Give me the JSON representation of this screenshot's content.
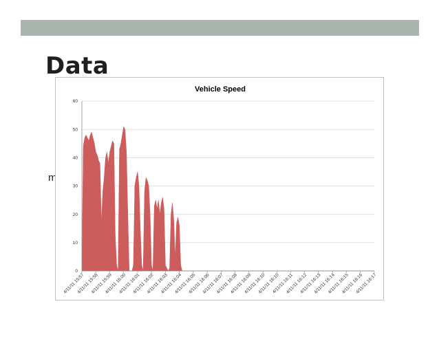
{
  "slide": {
    "title": "Data",
    "unit_label": "mph"
  },
  "colors": {
    "top_bar": "#a7b5ad",
    "area_fill": "#cd5c5c",
    "gridline": "#d9d9d9"
  },
  "chart_data": {
    "type": "area",
    "title": "Vehicle Speed",
    "xlabel": "",
    "ylabel": "mph",
    "ylim": [
      0,
      60
    ],
    "y_ticks": [
      0,
      10,
      20,
      30,
      40,
      50,
      60
    ],
    "grid": true,
    "legend": "none",
    "x_tick_labels": [
      "4/11/11 15:57",
      "4/11/11 15:58",
      "4/11/11 15:59",
      "4/11/11 16:00",
      "4/11/11 16:01",
      "4/11/11 16:02",
      "4/11/11 16:03",
      "4/11/11 16:04",
      "4/11/11 16:05",
      "4/11/11 16:06",
      "4/11/11 16:07",
      "4/11/11 16:08",
      "4/11/11 16:09",
      "4/11/11 16:10",
      "4/11/11 16:10",
      "4/11/11 16:11",
      "4/11/11 16:12",
      "4/11/11 16:13",
      "4/11/11 16:14",
      "4/11/11 16:15",
      "4/11/11 16:16",
      "4/11/11 16:17"
    ],
    "series": [
      {
        "x": [
          0,
          0.1,
          0.2,
          0.3,
          0.4,
          0.5,
          0.6,
          0.7,
          0.8,
          0.9,
          1.0,
          1.1,
          1.2,
          1.3,
          1.4,
          1.5,
          1.6,
          1.7,
          1.8,
          1.9,
          2.0,
          2.1,
          2.2,
          2.3,
          2.4,
          2.5,
          2.6,
          2.7,
          2.8,
          2.9,
          3.0,
          3.1,
          3.2,
          3.3,
          3.4,
          3.5,
          3.6,
          3.7,
          3.8,
          3.9,
          4.0,
          4.1,
          4.2,
          4.3,
          4.4,
          4.5,
          4.6,
          4.7,
          4.8,
          4.9,
          5.0,
          5.1,
          5.2,
          5.3,
          5.4,
          5.5,
          5.6,
          5.7,
          5.8,
          5.9,
          6.0,
          6.1,
          6.2,
          6.3,
          6.4,
          6.5,
          6.6,
          6.7,
          6.8,
          6.9,
          7.0,
          7.1,
          7.2,
          7.3,
          7.4,
          7.5,
          7.6,
          7.7,
          7.8,
          7.9,
          8.0,
          8.1,
          8.2,
          8.3,
          8.4,
          8.5,
          8.6,
          8.7,
          8.8,
          8.9,
          9.0,
          9.1,
          9.2,
          9.3,
          9.4,
          9.5,
          9.6,
          9.7,
          9.8,
          9.9,
          10.0,
          10.1,
          10.2,
          10.3,
          10.4,
          10.5,
          10.6,
          10.7,
          10.8,
          10.9,
          11.0,
          11.1,
          11.2,
          11.3,
          11.4,
          11.5,
          11.6,
          11.7,
          11.8,
          11.9,
          12.0,
          12.1,
          12.2,
          12.3,
          12.4,
          12.5,
          12.6,
          12.7,
          12.8,
          12.9,
          13.0,
          13.1,
          13.2,
          13.3,
          13.4,
          13.5,
          13.6,
          13.7,
          13.8,
          13.9,
          14.0,
          14.1,
          14.2,
          14.3,
          14.4,
          14.5,
          14.6,
          14.7,
          14.8,
          14.9,
          15.0,
          15.1,
          15.2,
          15.3,
          15.4,
          15.5,
          15.6,
          15.7,
          15.8,
          15.9,
          16.0,
          16.1,
          16.2,
          16.3,
          16.4,
          16.5,
          16.6,
          16.7,
          16.8,
          16.9,
          17.0,
          17.1,
          17.2,
          17.3,
          17.4,
          17.5,
          17.6,
          17.7,
          17.8,
          17.9,
          18.0,
          18.1,
          18.2,
          18.3,
          18.4,
          18.5,
          18.6,
          18.7,
          18.8,
          18.9,
          19.0,
          19.1,
          19.2,
          19.3,
          19.4,
          19.5,
          19.6,
          19.7,
          19.8,
          19.9,
          20.0,
          20.1,
          20.2,
          20.3,
          20.4,
          20.5,
          20.6,
          20.7,
          20.8,
          20.9,
          21.0
        ],
        "values": [
          0,
          44,
          47,
          48,
          47,
          46,
          48,
          49,
          47,
          45,
          42,
          41,
          39,
          38,
          17,
          28,
          33,
          40,
          42,
          38,
          42,
          44,
          46,
          45,
          12,
          2,
          0,
          43,
          45,
          48,
          51,
          50,
          42,
          20,
          0,
          0,
          0,
          2,
          30,
          33,
          35,
          30,
          14,
          2,
          0,
          28,
          33,
          32,
          30,
          20,
          2,
          0,
          23,
          25,
          22,
          25,
          20,
          24,
          26,
          22,
          2,
          1,
          0,
          1,
          20,
          24,
          18,
          5,
          17,
          19,
          16,
          2,
          0,
          0,
          0,
          0,
          0,
          0,
          0,
          0,
          0,
          0,
          0,
          0,
          0,
          0,
          0,
          0,
          0,
          0,
          0,
          0,
          0,
          0,
          0,
          0,
          0,
          0,
          0,
          0,
          0,
          0,
          0,
          0,
          0,
          0,
          0,
          0,
          0,
          0,
          0,
          0,
          0,
          0,
          0,
          0,
          0,
          0,
          0,
          0,
          0,
          0,
          0,
          0,
          0,
          0,
          0,
          0,
          0,
          0,
          0,
          0,
          0,
          0,
          0,
          0,
          0,
          0,
          0,
          0,
          0,
          0,
          0,
          0,
          0,
          0,
          0,
          0,
          0,
          0,
          0,
          0,
          0,
          0,
          0,
          0,
          0,
          0,
          0,
          0,
          0,
          0,
          0,
          0,
          0,
          0,
          0,
          0,
          0,
          0,
          0,
          0,
          0,
          0,
          0,
          0,
          0,
          0,
          0,
          0,
          0,
          0,
          0,
          0,
          0,
          0,
          0,
          0,
          0,
          0,
          0,
          0,
          0,
          0,
          0,
          0,
          0,
          0,
          0,
          0,
          0,
          0,
          0,
          0,
          0,
          0,
          0,
          0,
          0,
          0,
          0
        ]
      }
    ]
  }
}
